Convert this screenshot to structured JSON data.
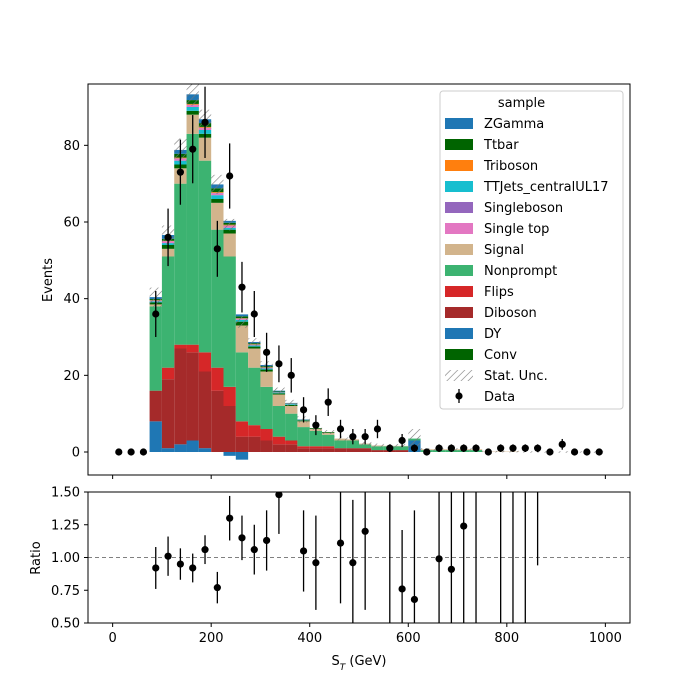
{
  "chart_data": {
    "type": "bar",
    "subtype": "stacked-step-histogram-with-data-points-and-ratio-panel",
    "x_bin_edges": [
      0,
      25,
      50,
      75,
      100,
      125,
      150,
      175,
      200,
      225,
      250,
      275,
      300,
      325,
      350,
      375,
      400,
      425,
      450,
      475,
      500,
      525,
      550,
      575,
      600,
      625,
      650,
      675,
      700,
      725,
      750,
      775,
      800,
      825,
      850,
      875,
      900,
      925,
      950,
      975,
      1000
    ],
    "main": {
      "ylabel": "Events",
      "xlim": [
        -50,
        1050
      ],
      "ylim": [
        -6,
        96
      ],
      "yticks": [
        0,
        20,
        40,
        60,
        80
      ],
      "series": [
        {
          "name": "DY",
          "color": "#1f77b4",
          "values": [
            0,
            0,
            0,
            8,
            1,
            2,
            3,
            1,
            0,
            -1,
            -2,
            0,
            0,
            0,
            0,
            0,
            0,
            0,
            0,
            0,
            0,
            0,
            0,
            0,
            3,
            0,
            0,
            0,
            0,
            0,
            0,
            0,
            0,
            0,
            0,
            0,
            0,
            0,
            0,
            0
          ]
        },
        {
          "name": "Diboson",
          "color": "#a52a2a",
          "values": [
            0,
            0,
            0,
            8,
            18,
            25,
            23,
            20,
            16,
            12,
            4,
            4,
            3,
            2,
            2,
            1,
            1,
            1,
            1,
            1,
            1,
            0.5,
            0.5,
            0.5,
            0,
            0,
            0,
            0,
            0,
            0,
            0,
            0,
            0,
            0,
            0,
            0,
            0,
            0,
            0,
            0
          ]
        },
        {
          "name": "Flips",
          "color": "#d62728",
          "values": [
            0,
            0,
            0,
            0,
            3,
            1,
            2,
            5,
            6,
            5,
            4,
            3,
            3,
            2,
            1,
            0.5,
            0.5,
            0.5,
            0,
            0,
            0,
            0,
            0,
            0,
            0,
            0,
            0,
            0,
            0,
            0,
            0,
            0,
            0,
            0,
            0,
            0,
            0,
            0,
            0,
            0
          ]
        },
        {
          "name": "Nonprompt",
          "color": "#3cb371",
          "values": [
            0,
            0,
            0,
            22,
            29,
            42,
            55,
            50,
            36,
            34,
            18,
            15,
            11,
            8,
            7,
            5,
            4,
            3,
            2,
            2,
            1,
            1,
            1,
            1,
            0.5,
            0.5,
            0.5,
            0.5,
            0.5,
            0.5,
            0,
            0,
            0,
            0,
            0,
            0,
            0,
            0,
            0,
            0
          ]
        },
        {
          "name": "Signal",
          "color": "#d2b48c",
          "values": [
            0,
            0,
            0,
            0.5,
            2,
            4,
            5,
            6,
            7,
            6,
            7,
            5,
            4,
            3,
            2,
            1.5,
            0.5,
            0.5,
            0.5,
            0.3,
            0.2,
            0.2,
            0.1,
            0.1,
            0,
            0.2,
            0.2,
            0.2,
            0.2,
            0.2,
            0.1,
            0.1,
            0.1,
            0,
            0,
            0,
            0,
            0,
            0,
            0
          ]
        },
        {
          "name": "Conv",
          "color": "#006400",
          "values": [
            0,
            0,
            0,
            0.5,
            1,
            1,
            1,
            1,
            1,
            1,
            1,
            0.5,
            0.5,
            0.3,
            0.3,
            0.2,
            0.2,
            0.2,
            0,
            0,
            0,
            0,
            0,
            0,
            0,
            0,
            0,
            0,
            0,
            0,
            0,
            0,
            0,
            0,
            0,
            0,
            0,
            0,
            0,
            0
          ]
        },
        {
          "name": "TTJets_centralUL17",
          "color": "#17becf",
          "values": [
            0,
            0,
            0,
            0.3,
            0.5,
            1,
            1,
            1,
            1,
            0.5,
            0.5,
            0.3,
            0.3,
            0.2,
            0.2,
            0.1,
            0,
            0,
            0,
            0,
            0,
            0,
            0,
            0,
            0,
            0,
            0,
            0,
            0,
            0,
            0,
            0,
            0,
            0,
            0,
            0,
            0,
            0,
            0,
            0
          ]
        },
        {
          "name": "Single top",
          "color": "#e377c2",
          "values": [
            0,
            0,
            0,
            0.2,
            0.5,
            0.5,
            0.5,
            0.5,
            0.5,
            0.5,
            0.3,
            0.2,
            0.2,
            0.1,
            0.1,
            0,
            0,
            0,
            0,
            0,
            0,
            0,
            0,
            0,
            0,
            0,
            0,
            0,
            0,
            0,
            0,
            0,
            0,
            0,
            0,
            0,
            0,
            0,
            0,
            0
          ]
        },
        {
          "name": "Singleboson",
          "color": "#9467bd",
          "values": [
            0,
            0,
            0,
            0,
            0,
            0.1,
            0.1,
            0.1,
            0.1,
            0.1,
            0,
            0,
            0,
            0,
            0,
            0,
            0,
            0,
            0,
            0,
            0,
            0,
            0,
            0,
            0,
            0,
            0,
            0,
            0,
            0,
            0,
            0,
            0,
            0,
            0,
            0,
            0,
            0,
            0,
            0
          ]
        },
        {
          "name": "Triboson",
          "color": "#ff7f0e",
          "values": [
            0,
            0,
            0,
            0.1,
            0.1,
            0.2,
            0.2,
            0.2,
            0.2,
            0.2,
            0.1,
            0.1,
            0.1,
            0,
            0,
            0,
            0,
            0,
            0,
            0,
            0,
            0,
            0,
            0,
            0,
            0,
            0,
            0,
            0,
            0,
            0,
            0,
            0,
            0,
            0,
            0,
            0,
            0,
            0,
            0
          ]
        },
        {
          "name": "Ttbar",
          "color": "#006400",
          "values": [
            0,
            0,
            0,
            0.3,
            0.5,
            1,
            1,
            1,
            1,
            0.5,
            0.5,
            0.3,
            0.3,
            0.2,
            0.1,
            0.1,
            0,
            0,
            0,
            0,
            0,
            0,
            0,
            0,
            0,
            0,
            0,
            0,
            0,
            0,
            0,
            0,
            0,
            0,
            0,
            0,
            0,
            0,
            0,
            0
          ]
        },
        {
          "name": "ZGamma",
          "color": "#1f77b4",
          "values": [
            0,
            0,
            0,
            0.5,
            1,
            1,
            1.5,
            1,
            1,
            0.5,
            0.5,
            0.3,
            0.3,
            0.2,
            0.1,
            0.1,
            0,
            0,
            0,
            0,
            0,
            0,
            0,
            0,
            0,
            0,
            0,
            0,
            0,
            0,
            0,
            0,
            0,
            0,
            0,
            0,
            0,
            0,
            0,
            0
          ]
        }
      ],
      "stat_unc": [
        0,
        0,
        0,
        2.5,
        2.5,
        3,
        3,
        2.5,
        2.5,
        1.5,
        1.5,
        1,
        1,
        0.8,
        0.8,
        0.8,
        0.5,
        0.5,
        0.5,
        0.5,
        0.5,
        0.5,
        0.5,
        0.5,
        2.5,
        0.3,
        0.3,
        0.3,
        0.3,
        0.3,
        0.2,
        0.2,
        0.2,
        0.2,
        0.2,
        0.2,
        0.2,
        0.2,
        0.2,
        0.2
      ],
      "data": {
        "name": "Data",
        "x": [
          12.5,
          37.5,
          62.5,
          87.5,
          112.5,
          137.5,
          162.5,
          187.5,
          212.5,
          237.5,
          262.5,
          287.5,
          312.5,
          337.5,
          362.5,
          387.5,
          412.5,
          437.5,
          462.5,
          487.5,
          512.5,
          537.5,
          562.5,
          587.5,
          612.5,
          637.5,
          662.5,
          687.5,
          712.5,
          737.5,
          762.5,
          787.5,
          812.5,
          837.5,
          862.5,
          887.5,
          912.5,
          937.5,
          962.5,
          987.5
        ],
        "y": [
          0,
          0,
          0,
          36,
          56,
          73,
          79,
          86,
          53,
          72,
          43,
          36,
          26,
          23,
          20,
          11,
          7,
          13,
          6,
          4,
          4,
          6,
          1,
          3,
          1,
          0,
          1,
          1,
          1,
          1,
          0,
          1,
          1,
          1,
          1,
          0,
          2,
          0,
          0,
          0
        ],
        "yerr": [
          0,
          0,
          0,
          6,
          7.5,
          8.5,
          8.9,
          9.3,
          7.3,
          8.5,
          6.6,
          6,
          5.1,
          4.8,
          4.5,
          3.3,
          2.6,
          3.6,
          2.4,
          2,
          2,
          2.4,
          1,
          1.7,
          1,
          0,
          1,
          1,
          1,
          1,
          0,
          1,
          1,
          1,
          1,
          0,
          1.4,
          0,
          0,
          0
        ]
      },
      "legend": {
        "title": "sample",
        "placement": "upper right",
        "entries": [
          "ZGamma",
          "Ttbar",
          "Triboson",
          "TTJets_centralUL17",
          "Singleboson",
          "Single top",
          "Signal",
          "Nonprompt",
          "Flips",
          "Diboson",
          "DY",
          "Conv",
          "Stat. Unc.",
          "Data"
        ]
      }
    },
    "ratio": {
      "ylabel": "Ratio",
      "xlabel": "S$_T$ (GeV)",
      "ylim": [
        0.5,
        1.5
      ],
      "yticks": [
        "0.50",
        "0.75",
        "1.00",
        "1.25",
        "1.50"
      ],
      "reference_line": 1.0,
      "points": [
        {
          "x": 87.5,
          "y": 0.92,
          "err": 0.16
        },
        {
          "x": 112.5,
          "y": 1.01,
          "err": 0.15
        },
        {
          "x": 137.5,
          "y": 0.95,
          "err": 0.12
        },
        {
          "x": 162.5,
          "y": 0.92,
          "err": 0.11
        },
        {
          "x": 187.5,
          "y": 1.06,
          "err": 0.11
        },
        {
          "x": 212.5,
          "y": 0.77,
          "err": 0.12
        },
        {
          "x": 237.5,
          "y": 1.3,
          "err": 0.17
        },
        {
          "x": 262.5,
          "y": 1.15,
          "err": 0.17
        },
        {
          "x": 287.5,
          "y": 1.06,
          "err": 0.19
        },
        {
          "x": 312.5,
          "y": 1.13,
          "err": 0.23
        },
        {
          "x": 337.5,
          "y": 1.48,
          "err": 0.3
        },
        {
          "x": 387.5,
          "y": 1.05,
          "err": 0.31
        },
        {
          "x": 412.5,
          "y": 0.96,
          "err": 0.36
        },
        {
          "x": 462.5,
          "y": 1.11,
          "err": 0.46
        },
        {
          "x": 487.5,
          "y": 0.96,
          "err": 0.48
        },
        {
          "x": 512.5,
          "y": 1.2,
          "err": 0.6
        },
        {
          "x": 587.5,
          "y": 0.76,
          "err": 0.45
        },
        {
          "x": 612.5,
          "y": 0.68,
          "err": 0.68
        },
        {
          "x": 662.5,
          "y": 0.99,
          "err": 0.99
        },
        {
          "x": 687.5,
          "y": 0.91,
          "err": 0.91
        },
        {
          "x": 712.5,
          "y": 1.24,
          "err": 1.24
        }
      ],
      "bare_error_bars": [
        {
          "x": 562.5,
          "ylo": 0.5,
          "yhi": 1.5
        },
        {
          "x": 737.5,
          "ylo": 0.5,
          "yhi": 1.5
        },
        {
          "x": 787.5,
          "ylo": 0.5,
          "yhi": 1.5
        },
        {
          "x": 812.5,
          "ylo": 0.5,
          "yhi": 1.5
        },
        {
          "x": 837.5,
          "ylo": 0.5,
          "yhi": 1.5
        },
        {
          "x": 862.5,
          "ylo": 0.94,
          "yhi": 1.5
        }
      ]
    },
    "xticks": [
      0,
      200,
      400,
      600,
      800,
      1000
    ],
    "grid": false
  }
}
